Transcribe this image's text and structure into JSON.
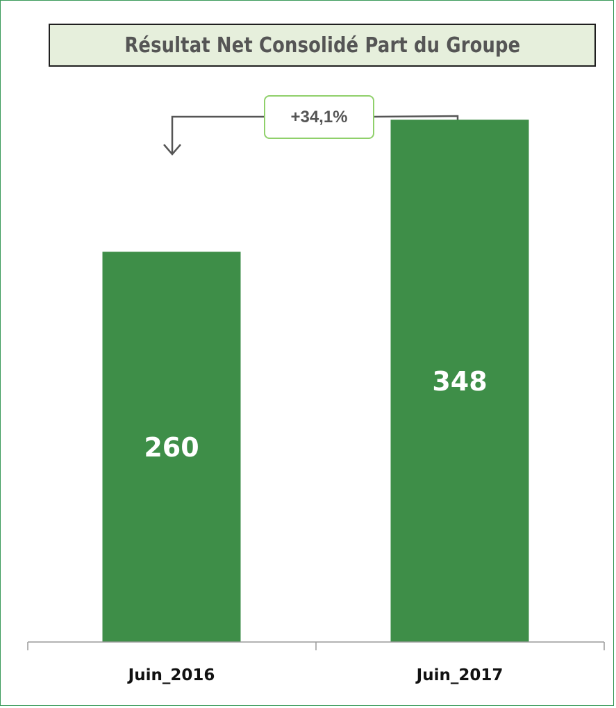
{
  "title": "Résultat Net Consolidé Part du Groupe",
  "growth_label": "+34,1%",
  "colors": {
    "bar": "#3e8e48",
    "title_bg": "#e6efdc",
    "growth_border": "#8fd06a",
    "arrow": "#555555",
    "frame": "#3a9a5a"
  },
  "chart_data": {
    "type": "bar",
    "categories": [
      "Juin_2016",
      "Juin_2017"
    ],
    "values": [
      260,
      348
    ],
    "data_labels": [
      "260",
      "348"
    ],
    "title": "Résultat Net Consolidé Part du Groupe",
    "xlabel": "",
    "ylabel": "",
    "ylim": [
      0,
      400
    ],
    "grid": false,
    "legend": "none"
  }
}
